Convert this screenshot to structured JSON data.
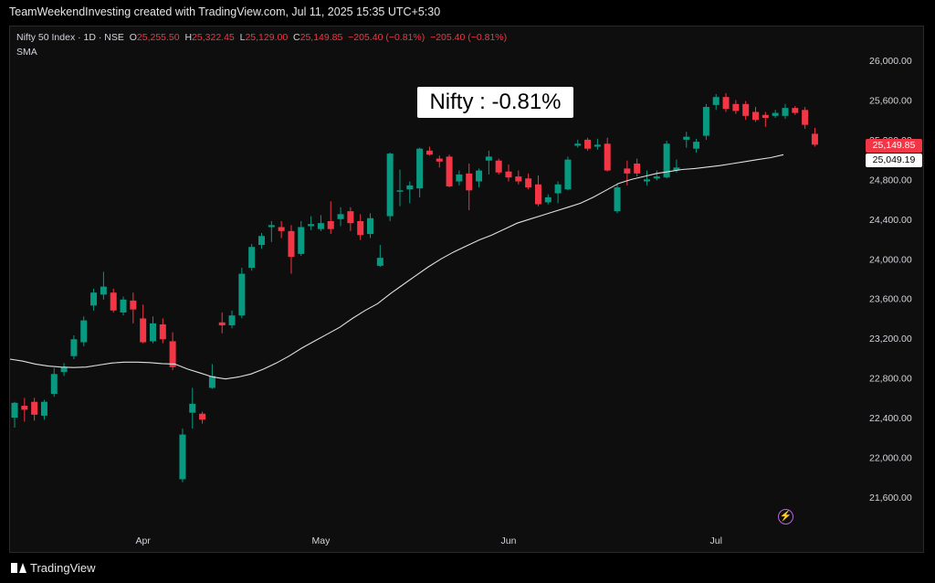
{
  "header": {
    "title": "TeamWeekendInvesting created with TradingView.com, Jul 11, 2025 15:35 UTC+5:30"
  },
  "legend": {
    "symbol": "Nifty 50 Index · 1D · NSE",
    "o_label": "O",
    "o_value": "25,255.50",
    "h_label": "H",
    "h_value": "25,322.45",
    "l_label": "L",
    "l_value": "25,129.00",
    "c_label": "C",
    "c_value": "25,149.85",
    "change": "−205.40 (−0.81%)",
    "change2": "−205.40 (−0.81%)",
    "indicator": "SMA"
  },
  "annotation": {
    "text": "Nifty : -0.81%"
  },
  "price_tags": {
    "last": "25,149.85",
    "sma": "25,049.19"
  },
  "brand": {
    "name": "TradingView"
  },
  "colors": {
    "up": "#089981",
    "down": "#f23645",
    "sma": "#e0e0e0",
    "background": "#0e0e0e"
  },
  "icons": {
    "lightning": "lightning-icon",
    "logo": "tradingview-logo-icon"
  },
  "chart_data": {
    "type": "candlestick",
    "title": "Nifty 50 Index · 1D · NSE",
    "y_ticks": [
      "26,000.00",
      "25,600.00",
      "25,200.00",
      "24,800.00",
      "24,400.00",
      "24,000.00",
      "23,600.00",
      "23,200.00",
      "22,800.00",
      "22,400.00",
      "22,000.00",
      "21,600.00"
    ],
    "x_ticks": [
      "Apr",
      "May",
      "Jun",
      "Jul"
    ],
    "ylim": [
      21400,
      26300
    ],
    "candles": [
      {
        "o": 22400,
        "h": 22560,
        "l": 22300,
        "c": 22550
      },
      {
        "o": 22520,
        "h": 22600,
        "l": 22360,
        "c": 22480
      },
      {
        "o": 22560,
        "h": 22600,
        "l": 22370,
        "c": 22430
      },
      {
        "o": 22420,
        "h": 22580,
        "l": 22380,
        "c": 22560
      },
      {
        "o": 22640,
        "h": 22900,
        "l": 22610,
        "c": 22840
      },
      {
        "o": 22860,
        "h": 22950,
        "l": 22820,
        "c": 22910
      },
      {
        "o": 23020,
        "h": 23230,
        "l": 22990,
        "c": 23190
      },
      {
        "o": 23160,
        "h": 23420,
        "l": 23120,
        "c": 23380
      },
      {
        "o": 23530,
        "h": 23700,
        "l": 23480,
        "c": 23660
      },
      {
        "o": 23640,
        "h": 23870,
        "l": 23590,
        "c": 23720
      },
      {
        "o": 23660,
        "h": 23700,
        "l": 23460,
        "c": 23480
      },
      {
        "o": 23460,
        "h": 23620,
        "l": 23430,
        "c": 23590
      },
      {
        "o": 23580,
        "h": 23660,
        "l": 23350,
        "c": 23490
      },
      {
        "o": 23400,
        "h": 23540,
        "l": 23150,
        "c": 23160
      },
      {
        "o": 23170,
        "h": 23420,
        "l": 23150,
        "c": 23350
      },
      {
        "o": 23340,
        "h": 23400,
        "l": 23150,
        "c": 23190
      },
      {
        "o": 23170,
        "h": 23260,
        "l": 22880,
        "c": 22910
      },
      {
        "o": 21780,
        "h": 22290,
        "l": 21750,
        "c": 22230
      },
      {
        "o": 22450,
        "h": 22700,
        "l": 22290,
        "c": 22540
      },
      {
        "o": 22440,
        "h": 22460,
        "l": 22340,
        "c": 22380
      },
      {
        "o": 22700,
        "h": 22940,
        "l": 22690,
        "c": 22820
      },
      {
        "o": 23360,
        "h": 23460,
        "l": 23250,
        "c": 23330
      },
      {
        "o": 23330,
        "h": 23480,
        "l": 23300,
        "c": 23430
      },
      {
        "o": 23430,
        "h": 23910,
        "l": 23400,
        "c": 23850
      },
      {
        "o": 23910,
        "h": 24150,
        "l": 23880,
        "c": 24120
      },
      {
        "o": 24140,
        "h": 24260,
        "l": 24100,
        "c": 24230
      },
      {
        "o": 24320,
        "h": 24380,
        "l": 24170,
        "c": 24340
      },
      {
        "o": 24320,
        "h": 24380,
        "l": 24210,
        "c": 24280
      },
      {
        "o": 24280,
        "h": 24340,
        "l": 23850,
        "c": 24020
      },
      {
        "o": 24050,
        "h": 24380,
        "l": 24030,
        "c": 24320
      },
      {
        "o": 24330,
        "h": 24430,
        "l": 24290,
        "c": 24350
      },
      {
        "o": 24300,
        "h": 24440,
        "l": 24280,
        "c": 24360
      },
      {
        "o": 24380,
        "h": 24580,
        "l": 24250,
        "c": 24300
      },
      {
        "o": 24400,
        "h": 24520,
        "l": 24330,
        "c": 24450
      },
      {
        "o": 24480,
        "h": 24520,
        "l": 24280,
        "c": 24360
      },
      {
        "o": 24380,
        "h": 24450,
        "l": 24190,
        "c": 24240
      },
      {
        "o": 24250,
        "h": 24460,
        "l": 24210,
        "c": 24410
      },
      {
        "o": 23930,
        "h": 24140,
        "l": 23920,
        "c": 24010
      },
      {
        "o": 24430,
        "h": 25070,
        "l": 24380,
        "c": 25060
      },
      {
        "o": 24690,
        "h": 24900,
        "l": 24530,
        "c": 24690
      },
      {
        "o": 24700,
        "h": 24780,
        "l": 24560,
        "c": 24740
      },
      {
        "o": 24710,
        "h": 25120,
        "l": 24620,
        "c": 25110
      },
      {
        "o": 25090,
        "h": 25130,
        "l": 25040,
        "c": 25050
      },
      {
        "o": 25010,
        "h": 25040,
        "l": 24920,
        "c": 24980
      },
      {
        "o": 25030,
        "h": 25050,
        "l": 24720,
        "c": 24730
      },
      {
        "o": 24780,
        "h": 24890,
        "l": 24740,
        "c": 24850
      },
      {
        "o": 24860,
        "h": 24960,
        "l": 24490,
        "c": 24690
      },
      {
        "o": 24780,
        "h": 24910,
        "l": 24720,
        "c": 24890
      },
      {
        "o": 24990,
        "h": 25090,
        "l": 24850,
        "c": 25030
      },
      {
        "o": 24990,
        "h": 25010,
        "l": 24850,
        "c": 24870
      },
      {
        "o": 24880,
        "h": 24950,
        "l": 24780,
        "c": 24820
      },
      {
        "o": 24830,
        "h": 24890,
        "l": 24750,
        "c": 24780
      },
      {
        "o": 24810,
        "h": 24860,
        "l": 24700,
        "c": 24720
      },
      {
        "o": 24750,
        "h": 24840,
        "l": 24530,
        "c": 24550
      },
      {
        "o": 24570,
        "h": 24650,
        "l": 24550,
        "c": 24620
      },
      {
        "o": 24660,
        "h": 24780,
        "l": 24560,
        "c": 24750
      },
      {
        "o": 24700,
        "h": 25030,
        "l": 24690,
        "c": 25000
      },
      {
        "o": 25140,
        "h": 25200,
        "l": 25120,
        "c": 25160
      },
      {
        "o": 25200,
        "h": 25220,
        "l": 25090,
        "c": 25110
      },
      {
        "o": 25130,
        "h": 25210,
        "l": 25100,
        "c": 25150
      },
      {
        "o": 25160,
        "h": 25220,
        "l": 24880,
        "c": 24890
      },
      {
        "o": 24480,
        "h": 24760,
        "l": 24460,
        "c": 24720
      },
      {
        "o": 24910,
        "h": 24990,
        "l": 24740,
        "c": 24860
      },
      {
        "o": 24960,
        "h": 25010,
        "l": 24830,
        "c": 24860
      },
      {
        "o": 24780,
        "h": 24890,
        "l": 24740,
        "c": 24800
      },
      {
        "o": 24810,
        "h": 24890,
        "l": 24790,
        "c": 24830
      },
      {
        "o": 24820,
        "h": 25190,
        "l": 24810,
        "c": 25160
      },
      {
        "o": 24890,
        "h": 25000,
        "l": 24870,
        "c": 24920
      },
      {
        "o": 25200,
        "h": 25280,
        "l": 25120,
        "c": 25230
      },
      {
        "o": 25110,
        "h": 25210,
        "l": 25070,
        "c": 25180
      },
      {
        "o": 25240,
        "h": 25560,
        "l": 25200,
        "c": 25530
      },
      {
        "o": 25550,
        "h": 25660,
        "l": 25500,
        "c": 25630
      },
      {
        "o": 25630,
        "h": 25670,
        "l": 25480,
        "c": 25510
      },
      {
        "o": 25560,
        "h": 25600,
        "l": 25460,
        "c": 25490
      },
      {
        "o": 25560,
        "h": 25590,
        "l": 25400,
        "c": 25440
      },
      {
        "o": 25480,
        "h": 25530,
        "l": 25380,
        "c": 25400
      },
      {
        "o": 25450,
        "h": 25480,
        "l": 25330,
        "c": 25420
      },
      {
        "o": 25440,
        "h": 25500,
        "l": 25420,
        "c": 25470
      },
      {
        "o": 25440,
        "h": 25560,
        "l": 25410,
        "c": 25520
      },
      {
        "o": 25520,
        "h": 25540,
        "l": 25450,
        "c": 25470
      },
      {
        "o": 25500,
        "h": 25530,
        "l": 25310,
        "c": 25350
      },
      {
        "o": 25260,
        "h": 25320,
        "l": 25130,
        "c": 25150
      }
    ],
    "sma": [
      22990,
      22970,
      22940,
      22920,
      22910,
      22905,
      22910,
      22930,
      22950,
      22960,
      22960,
      22955,
      22945,
      22940,
      22890,
      22850,
      22810,
      22790,
      22810,
      22840,
      22890,
      22950,
      23020,
      23100,
      23170,
      23240,
      23310,
      23400,
      23480,
      23550,
      23650,
      23740,
      23830,
      23920,
      24000,
      24070,
      24130,
      24190,
      24240,
      24300,
      24360,
      24400,
      24440,
      24480,
      24520,
      24560,
      24620,
      24690,
      24760,
      24800,
      24830,
      24860,
      24880,
      24900,
      24910,
      24925,
      24940,
      24960,
      24980,
      25000,
      25020,
      25049.19
    ]
  }
}
